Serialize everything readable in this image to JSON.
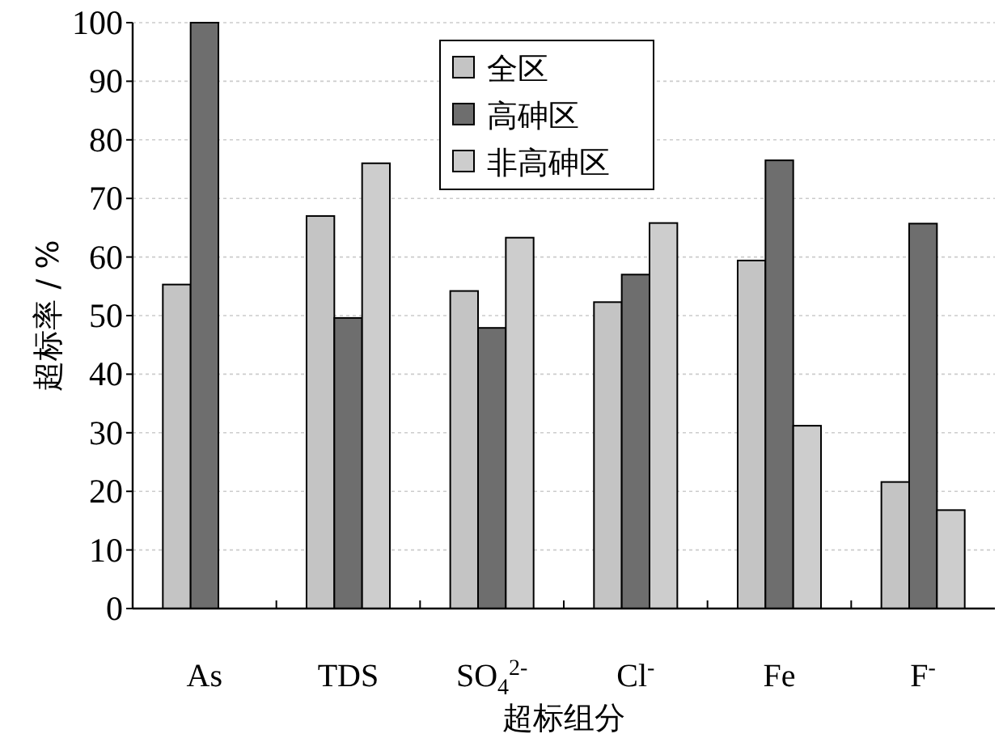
{
  "chart_data": {
    "type": "bar",
    "xlabel": "超标组分",
    "ylabel": "超标率 / %",
    "categories": [
      "As",
      "TDS",
      "SO$_{4}$$^{2-}$",
      "Cl$^{-}$",
      "Fe",
      "F$^{-}$"
    ],
    "series": [
      {
        "name": "全区",
        "color": "#c4c4c4",
        "values": [
          55.3,
          67,
          54.2,
          52.3,
          59.4,
          21.6
        ]
      },
      {
        "name": "高砷区",
        "color": "#6e6e6e",
        "values": [
          100,
          49.6,
          47.9,
          57,
          76.5,
          65.7
        ]
      },
      {
        "name": "非高砷区",
        "color": "#cdcdcd",
        "values": [
          null,
          76,
          63.3,
          65.8,
          31.2,
          16.8
        ]
      }
    ],
    "ylim": [
      0,
      100
    ],
    "yticks": [
      0,
      10,
      20,
      30,
      40,
      50,
      60,
      70,
      80,
      90,
      100
    ],
    "grid": "y",
    "legend": "top"
  }
}
